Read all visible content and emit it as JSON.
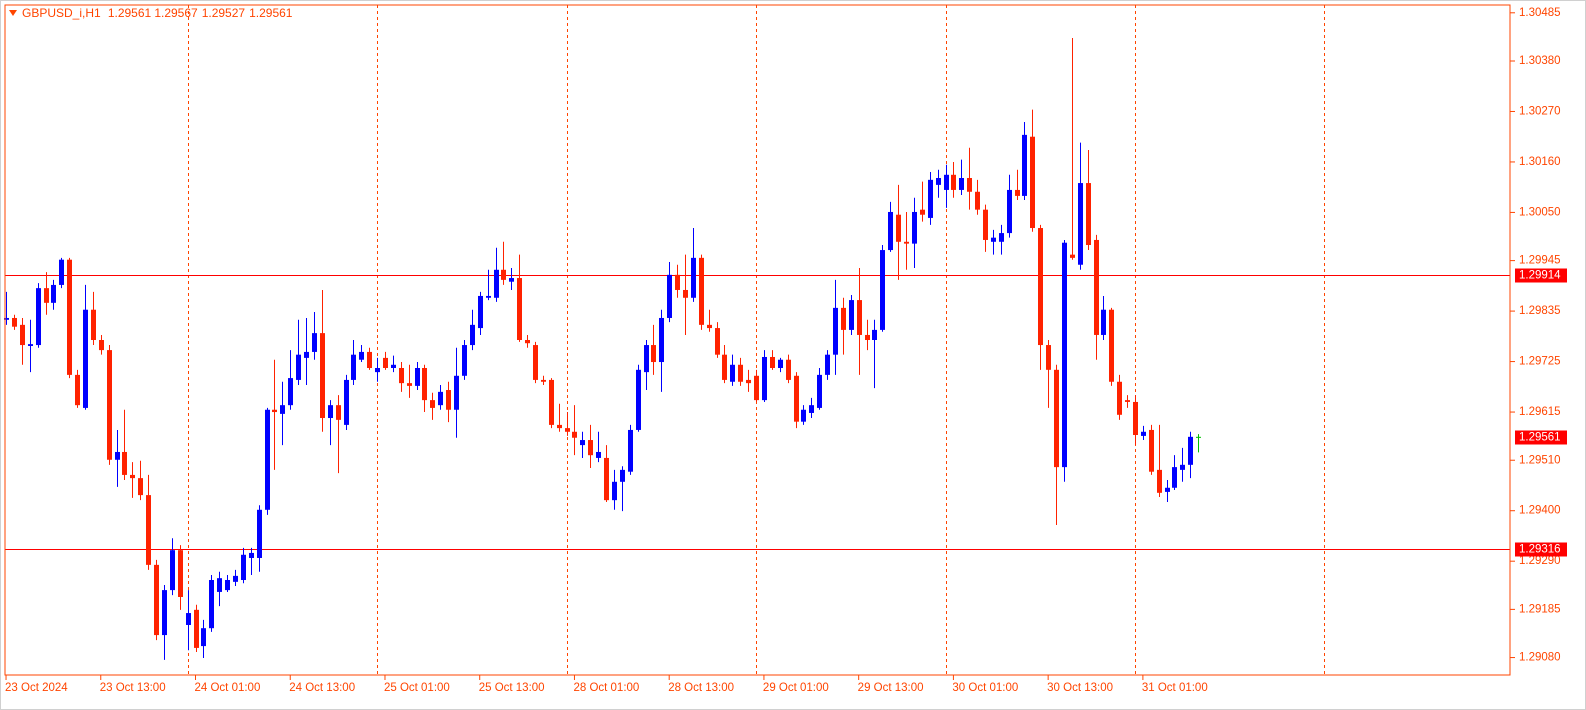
{
  "symbol": "GBPUSD_i,H1",
  "chart_data": {
    "type": "candlestick",
    "up_color": "#0000ff",
    "down_color": "#ff2200",
    "doji_color": "#00c000",
    "level_color": "#ff0000",
    "axis_color": "#ff4500",
    "xlim": [
      -0.13,
      190.5
    ],
    "ylim": [
      1.29042,
      1.30502
    ],
    "yticks": [
      1.30485,
      {
        "value": 1.3038,
        "label": "1.30380"
      },
      {
        "value": 1.3027,
        "label": "1.30270"
      },
      {
        "value": 1.3016,
        "label": "1.30160"
      },
      {
        "value": 1.3005,
        "label": "1.30050"
      },
      1.29945,
      1.29835,
      1.29725,
      1.29615,
      {
        "value": 1.2951,
        "label": "1.29510"
      },
      {
        "value": 1.294,
        "label": "1.29400"
      },
      {
        "value": 1.2929,
        "label": "1.29290"
      },
      1.29185,
      {
        "value": 1.2908,
        "label": "1.29080"
      }
    ],
    "xticks": [
      {
        "value": 0,
        "label": "23 Oct 2024"
      },
      {
        "value": 12,
        "label": "23 Oct 13:00"
      },
      {
        "value": 24,
        "label": "24 Oct 01:00"
      },
      {
        "value": 36,
        "label": "24 Oct 13:00"
      },
      {
        "value": 48,
        "label": "25 Oct 01:00"
      },
      {
        "value": 60,
        "label": "25 Oct 13:00"
      },
      {
        "value": 72,
        "label": "28 Oct 01:00"
      },
      {
        "value": 84,
        "label": "28 Oct 13:00"
      },
      {
        "value": 96,
        "label": "29 Oct 01:00"
      },
      {
        "value": 108,
        "label": "29 Oct 13:00"
      },
      {
        "value": 120,
        "label": "30 Oct 01:00"
      },
      {
        "value": 132,
        "label": "30 Oct 13:00"
      },
      {
        "value": 144,
        "label": "31 Oct 01:00"
      }
    ],
    "xgrid": [
      23,
      47,
      71,
      95,
      119,
      143,
      167
    ],
    "levels": [
      1.29914,
      1.29316
    ],
    "open": [
      1.29816,
      1.2982,
      1.29805,
      1.29759,
      1.29761,
      1.29885,
      1.29853,
      1.29892,
      1.29947,
      1.29696,
      1.29624,
      1.29838,
      1.29772,
      1.2975,
      1.29511,
      1.29528,
      1.29478,
      1.29471,
      1.29434,
      1.29282,
      1.29129,
      1.29227,
      1.29314,
      1.29151,
      1.29184,
      1.29105,
      1.29144,
      1.29223,
      1.29227,
      1.29245,
      1.29249,
      1.29297,
      1.29297,
      1.29402,
      1.2962,
      1.29611,
      1.2963,
      1.29685,
      1.29733,
      1.29746,
      1.29787,
      1.29602,
      1.2963,
      1.29587,
      1.29685,
      1.29729,
      1.29746,
      1.29702,
      1.29733,
      1.29711,
      1.29711,
      1.29678,
      1.29672,
      1.29711,
      1.29641,
      1.2963,
      1.29663,
      1.2962,
      1.29694,
      1.29761,
      1.29798,
      1.29864,
      1.29864,
      1.29925,
      1.29899,
      1.29907,
      1.29772,
      1.29761,
      1.29685,
      1.29685,
      1.29587,
      1.2958,
      1.29572,
      1.29543,
      1.29554,
      1.29515,
      1.29515,
      1.29423,
      1.29463,
      1.29485,
      1.29576,
      1.29702,
      1.29761,
      1.29724,
      1.2982,
      1.29914,
      1.29881,
      1.29864,
      1.29951,
      1.29805,
      1.29798,
      1.2974,
      1.29681,
      1.29718,
      1.29685,
      1.29694,
      1.29641,
      1.29735,
      1.29711,
      1.29729,
      1.29694,
      1.29594,
      1.29613,
      1.29624,
      1.29696,
      1.2974,
      1.29842,
      1.29794,
      1.29859,
      1.29783,
      1.29772,
      1.29794,
      1.29968,
      1.30045,
      1.29986,
      1.29982,
      1.30056,
      1.30038,
      1.3011,
      1.30099,
      1.30132,
      1.30099,
      1.30125,
      1.30095,
      1.30056,
      1.29986,
      1.29986,
      1.30005,
      1.30099,
      1.30086,
      1.30215,
      1.30016,
      1.29761,
      1.29707,
      1.29495,
      1.29958,
      1.29936,
      1.30114,
      1.2999,
      1.29783,
      1.29838,
      1.29681,
      1.29641,
      1.29637,
      1.29563,
      1.29576,
      1.29489,
      1.29441,
      1.2945,
      1.29489,
      1.295,
      1.29561
    ],
    "high": [
      1.29877,
      1.29827,
      1.2982,
      1.29816,
      1.29896,
      1.2992,
      1.29903,
      1.29951,
      1.29951,
      1.29707,
      1.29892,
      1.29877,
      1.29783,
      1.29761,
      1.29576,
      1.2962,
      1.29506,
      1.29509,
      1.29478,
      1.29293,
      1.29238,
      1.2934,
      1.29325,
      1.29227,
      1.29195,
      1.29162,
      1.2926,
      1.29267,
      1.2926,
      1.29271,
      1.29319,
      1.29319,
      1.29412,
      1.29624,
      1.29729,
      1.29681,
      1.2975,
      1.29816,
      1.2982,
      1.29833,
      1.29881,
      1.29641,
      1.29652,
      1.29696,
      1.29772,
      1.29761,
      1.29755,
      1.29733,
      1.29746,
      1.29738,
      1.29724,
      1.29718,
      1.29724,
      1.29718,
      1.29657,
      1.29674,
      1.29681,
      1.29755,
      1.29772,
      1.29838,
      1.29877,
      1.29925,
      1.29973,
      1.29986,
      1.29929,
      1.29958,
      1.29783,
      1.29768,
      1.29694,
      1.29689,
      1.29633,
      1.29615,
      1.2963,
      1.29572,
      1.29587,
      1.29572,
      1.29543,
      1.29489,
      1.29497,
      1.29587,
      1.29718,
      1.29772,
      1.29805,
      1.29838,
      1.29942,
      1.29936,
      1.29958,
      1.30016,
      1.29958,
      1.29838,
      1.29811,
      1.29761,
      1.2974,
      1.29733,
      1.29707,
      1.29707,
      1.2975,
      1.2975,
      1.29733,
      1.2974,
      1.29702,
      1.2963,
      1.29646,
      1.29711,
      1.2975,
      1.29903,
      1.29864,
      1.2987,
      1.29929,
      1.29816,
      1.29816,
      1.29979,
      1.30073,
      1.3011,
      1.30051,
      1.30082,
      1.30117,
      1.30138,
      1.30143,
      1.30154,
      1.3016,
      1.30165,
      1.30191,
      1.30121,
      1.30067,
      1.30012,
      1.30023,
      1.30132,
      1.30143,
      1.30247,
      1.30274,
      1.30023,
      1.29772,
      1.29718,
      1.2999,
      1.3043,
      1.30202,
      1.30186,
      1.30001,
      1.29868,
      1.29842,
      1.29696,
      1.29652,
      1.29652,
      1.29585,
      1.29587,
      1.29587,
      1.29467,
      1.29521,
      1.29537,
      1.29572,
      1.29567
    ],
    "low": [
      1.29805,
      1.29794,
      1.29718,
      1.29702,
      1.29755,
      1.29827,
      1.29838,
      1.29885,
      1.29689,
      1.29624,
      1.2962,
      1.29761,
      1.2974,
      1.295,
      1.29452,
      1.29467,
      1.29428,
      1.29423,
      1.29271,
      1.29118,
      1.29075,
      1.29216,
      1.29184,
      1.29096,
      1.29092,
      1.29079,
      1.29136,
      1.29192,
      1.29223,
      1.29236,
      1.29242,
      1.2926,
      1.29267,
      1.29391,
      1.29489,
      1.29543,
      1.2962,
      1.29674,
      1.29674,
      1.29729,
      1.29572,
      1.29543,
      1.29482,
      1.29576,
      1.29674,
      1.29724,
      1.29707,
      1.29681,
      1.29707,
      1.29702,
      1.29659,
      1.29646,
      1.29663,
      1.29615,
      1.29598,
      1.2962,
      1.29593,
      1.29559,
      1.29685,
      1.2975,
      1.29783,
      1.29859,
      1.29855,
      1.29892,
      1.29881,
      1.29768,
      1.29755,
      1.29678,
      1.29674,
      1.2958,
      1.29572,
      1.29563,
      1.29521,
      1.29515,
      1.29493,
      1.29506,
      1.29419,
      1.29402,
      1.29399,
      1.29478,
      1.29572,
      1.29663,
      1.29696,
      1.29659,
      1.29811,
      1.29864,
      1.29783,
      1.29855,
      1.29794,
      1.2979,
      1.29733,
      1.29678,
      1.29672,
      1.29672,
      1.29659,
      1.29637,
      1.29637,
      1.29707,
      1.29702,
      1.29678,
      1.2958,
      1.29587,
      1.29602,
      1.2962,
      1.29685,
      1.29696,
      1.2974,
      1.29783,
      1.29696,
      1.2975,
      1.29667,
      1.2979,
      1.29964,
      1.29903,
      1.29925,
      1.29929,
      1.3003,
      1.30023,
      1.30082,
      1.3006,
      1.30082,
      1.30088,
      1.30056,
      1.30045,
      1.29964,
      1.29958,
      1.29958,
      1.29995,
      1.30077,
      1.30077,
      1.30008,
      1.29707,
      1.29624,
      1.29369,
      1.29463,
      1.29947,
      1.29925,
      1.29968,
      1.29729,
      1.29772,
      1.29672,
      1.29598,
      1.29624,
      1.29543,
      1.29554,
      1.29478,
      1.2943,
      1.29419,
      1.29445,
      1.29463,
      1.29471,
      1.29527
    ],
    "close": [
      1.2982,
      1.29801,
      1.29761,
      1.29763,
      1.29885,
      1.29853,
      1.29892,
      1.29947,
      1.29696,
      1.2963,
      1.29838,
      1.29772,
      1.2975,
      1.29511,
      1.29528,
      1.29478,
      1.29471,
      1.29434,
      1.29282,
      1.29129,
      1.29227,
      1.29314,
      1.29212,
      1.29177,
      1.29101,
      1.29144,
      1.29249,
      1.29253,
      1.29249,
      1.29258,
      1.29304,
      1.29308,
      1.29402,
      1.2962,
      1.29615,
      1.2963,
      1.29689,
      1.2974,
      1.29746,
      1.29787,
      1.29602,
      1.2963,
      1.29598,
      1.29685,
      1.2974,
      1.29746,
      1.29711,
      1.29711,
      1.29711,
      1.29718,
      1.29678,
      1.29672,
      1.29711,
      1.29641,
      1.29624,
      1.29659,
      1.2962,
      1.29694,
      1.29761,
      1.29805,
      1.29868,
      1.29868,
      1.29925,
      1.29903,
      1.29907,
      1.29772,
      1.29765,
      1.29685,
      1.29681,
      1.29587,
      1.2958,
      1.29572,
      1.29559,
      1.29554,
      1.29521,
      1.29528,
      1.29423,
      1.29463,
      1.29489,
      1.29576,
      1.29707,
      1.29761,
      1.29724,
      1.2982,
      1.29914,
      1.29881,
      1.29864,
      1.29951,
      1.29805,
      1.29798,
      1.2974,
      1.29685,
      1.29718,
      1.29681,
      1.29678,
      1.29641,
      1.29735,
      1.29711,
      1.29729,
      1.29685,
      1.29594,
      1.2962,
      1.2963,
      1.29696,
      1.2974,
      1.29842,
      1.29794,
      1.29859,
      1.29783,
      1.29772,
      1.29794,
      1.29968,
      1.30051,
      1.29986,
      1.29982,
      1.30051,
      1.30045,
      1.30121,
      1.30125,
      1.30132,
      1.30099,
      1.30125,
      1.30095,
      1.30056,
      1.2999,
      1.29995,
      1.30005,
      1.30099,
      1.30086,
      1.30219,
      1.30016,
      1.29761,
      1.29707,
      1.29495,
      1.29984,
      1.29951,
      1.30114,
      1.29979,
      1.29783,
      1.29838,
      1.29681,
      1.29609,
      1.29637,
      1.29565,
      1.29572,
      1.29485,
      1.29439,
      1.2945,
      1.29495,
      1.295,
      1.29561,
      1.29561
    ]
  }
}
